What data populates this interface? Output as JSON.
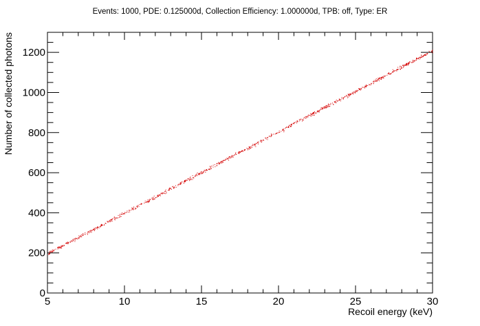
{
  "chart_data": {
    "type": "scatter",
    "title": "Events: 1000, PDE: 0.125000d, Collection Efficiency: 1.000000d, TPB: off, Type: ER",
    "xlabel": "Recoil energy (keV)",
    "ylabel": "Number of collected photons",
    "xlim": [
      5,
      30
    ],
    "ylim": [
      0,
      1300
    ],
    "x_ticks": [
      5,
      10,
      15,
      20,
      25,
      30
    ],
    "y_ticks": [
      0,
      200,
      400,
      600,
      800,
      1000,
      1200
    ],
    "grid": false,
    "legend": "none",
    "series": [
      {
        "color": "#d40000",
        "marker": "dot",
        "trend": {
          "x": [
            5,
            30
          ],
          "y": [
            198,
            1210
          ]
        },
        "approx_count": 1000,
        "spread": 7
      }
    ]
  }
}
